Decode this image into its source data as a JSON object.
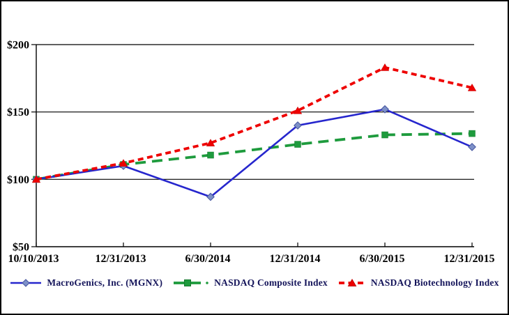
{
  "chart_data": {
    "type": "line",
    "title": "",
    "x_labels": [
      "10/10/2013",
      "12/31/2013",
      "6/30/2014",
      "12/31/2014",
      "6/30/2015",
      "12/31/2015"
    ],
    "y_tick_labels": [
      "$50",
      "$100",
      "$150",
      "$200"
    ],
    "y_tick_values": [
      50,
      100,
      150,
      200
    ],
    "ylim": [
      50,
      200
    ],
    "grid": true,
    "legend_position": "bottom",
    "axis_color": "#000000",
    "axis_label_color": "#000000",
    "legend_text_color": "#14145a",
    "series": [
      {
        "name": "MacroGenics, Inc. (MGNX)",
        "line_color": "#2626cd",
        "line_style": "solid",
        "line_width": 2.6,
        "marker": "diamond",
        "marker_fill": "#7d90c8",
        "marker_stroke": "#44549e",
        "values": [
          100,
          110,
          87,
          140,
          152,
          124
        ]
      },
      {
        "name": "NASDAQ Composite Index",
        "line_color": "#1e9b3d",
        "line_style": "long-dash",
        "line_width": 3.8,
        "marker": "square",
        "marker_fill": "#1e9b3d",
        "marker_stroke": "#157a2e",
        "values": [
          100,
          111,
          118,
          126,
          133,
          134
        ]
      },
      {
        "name": "NASDAQ Biotechnology Index",
        "line_color": "#ee0000",
        "line_style": "short-dash",
        "line_width": 3.8,
        "marker": "triangle",
        "marker_fill": "#ee0000",
        "marker_stroke": "#c40000",
        "values": [
          100,
          112,
          127,
          151,
          183,
          168
        ]
      }
    ]
  }
}
